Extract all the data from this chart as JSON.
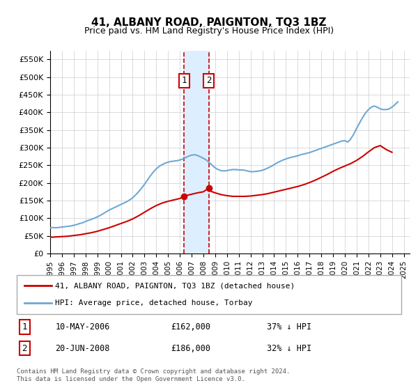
{
  "title": "41, ALBANY ROAD, PAIGNTON, TQ3 1BZ",
  "subtitle": "Price paid vs. HM Land Registry's House Price Index (HPI)",
  "ylabel": "",
  "ylim": [
    0,
    575000
  ],
  "yticks": [
    0,
    50000,
    100000,
    150000,
    200000,
    250000,
    300000,
    350000,
    400000,
    450000,
    500000,
    550000
  ],
  "ytick_labels": [
    "£0",
    "£50K",
    "£100K",
    "£150K",
    "£200K",
    "£250K",
    "£300K",
    "£350K",
    "£400K",
    "£450K",
    "£500K",
    "£550K"
  ],
  "xlim_start": 1995.0,
  "xlim_end": 2025.5,
  "xtick_years": [
    1995,
    1996,
    1997,
    1998,
    1999,
    2000,
    2001,
    2002,
    2003,
    2004,
    2005,
    2006,
    2007,
    2008,
    2009,
    2010,
    2011,
    2012,
    2013,
    2014,
    2015,
    2016,
    2017,
    2018,
    2019,
    2020,
    2021,
    2022,
    2023,
    2024,
    2025
  ],
  "hpi_color": "#6fa8d4",
  "price_color": "#cc0000",
  "marker_color": "#cc0000",
  "shade_color": "#ddeeff",
  "vline_color": "#cc0000",
  "legend_label_red": "41, ALBANY ROAD, PAIGNTON, TQ3 1BZ (detached house)",
  "legend_label_blue": "HPI: Average price, detached house, Torbay",
  "transaction1_label": "1",
  "transaction1_date": "10-MAY-2006",
  "transaction1_price": "£162,000",
  "transaction1_hpi": "37% ↓ HPI",
  "transaction1_year": 2006.37,
  "transaction1_value": 162000,
  "transaction2_label": "2",
  "transaction2_date": "20-JUN-2008",
  "transaction2_price": "£186,000",
  "transaction2_hpi": "32% ↓ HPI",
  "transaction2_year": 2008.47,
  "transaction2_value": 186000,
  "footer": "Contains HM Land Registry data © Crown copyright and database right 2024.\nThis data is licensed under the Open Government Licence v3.0.",
  "hpi_data_x": [
    1995.0,
    1995.25,
    1995.5,
    1995.75,
    1996.0,
    1996.25,
    1996.5,
    1996.75,
    1997.0,
    1997.25,
    1997.5,
    1997.75,
    1998.0,
    1998.25,
    1998.5,
    1998.75,
    1999.0,
    1999.25,
    1999.5,
    1999.75,
    2000.0,
    2000.25,
    2000.5,
    2000.75,
    2001.0,
    2001.25,
    2001.5,
    2001.75,
    2002.0,
    2002.25,
    2002.5,
    2002.75,
    2003.0,
    2003.25,
    2003.5,
    2003.75,
    2004.0,
    2004.25,
    2004.5,
    2004.75,
    2005.0,
    2005.25,
    2005.5,
    2005.75,
    2006.0,
    2006.25,
    2006.5,
    2006.75,
    2007.0,
    2007.25,
    2007.5,
    2007.75,
    2008.0,
    2008.25,
    2008.5,
    2008.75,
    2009.0,
    2009.25,
    2009.5,
    2009.75,
    2010.0,
    2010.25,
    2010.5,
    2010.75,
    2011.0,
    2011.25,
    2011.5,
    2011.75,
    2012.0,
    2012.25,
    2012.5,
    2012.75,
    2013.0,
    2013.25,
    2013.5,
    2013.75,
    2014.0,
    2014.25,
    2014.5,
    2014.75,
    2015.0,
    2015.25,
    2015.5,
    2015.75,
    2016.0,
    2016.25,
    2016.5,
    2016.75,
    2017.0,
    2017.25,
    2017.5,
    2017.75,
    2018.0,
    2018.25,
    2018.5,
    2018.75,
    2019.0,
    2019.25,
    2019.5,
    2019.75,
    2020.0,
    2020.25,
    2020.5,
    2020.75,
    2021.0,
    2021.25,
    2021.5,
    2021.75,
    2022.0,
    2022.25,
    2022.5,
    2022.75,
    2023.0,
    2023.25,
    2023.5,
    2023.75,
    2024.0,
    2024.25,
    2024.5
  ],
  "hpi_data_y": [
    73000,
    73500,
    73000,
    74000,
    75000,
    76000,
    77000,
    78000,
    80000,
    82000,
    85000,
    87000,
    91000,
    94000,
    97000,
    100000,
    104000,
    108000,
    113000,
    118000,
    123000,
    127000,
    131000,
    135000,
    139000,
    143000,
    147000,
    152000,
    158000,
    166000,
    175000,
    185000,
    196000,
    208000,
    220000,
    231000,
    240000,
    247000,
    252000,
    256000,
    259000,
    261000,
    262000,
    263000,
    265000,
    268000,
    272000,
    276000,
    279000,
    280000,
    278000,
    274000,
    270000,
    265000,
    258000,
    250000,
    243000,
    238000,
    235000,
    234000,
    235000,
    237000,
    238000,
    238000,
    237000,
    237000,
    236000,
    234000,
    232000,
    232000,
    233000,
    234000,
    236000,
    239000,
    243000,
    247000,
    252000,
    257000,
    261000,
    265000,
    268000,
    271000,
    273000,
    275000,
    277000,
    280000,
    282000,
    284000,
    286000,
    289000,
    292000,
    295000,
    298000,
    301000,
    304000,
    307000,
    310000,
    313000,
    316000,
    319000,
    320000,
    316000,
    325000,
    338000,
    355000,
    370000,
    385000,
    398000,
    408000,
    415000,
    418000,
    415000,
    410000,
    408000,
    408000,
    410000,
    415000,
    422000,
    430000
  ],
  "price_data_x": [
    1995.0,
    1995.5,
    1996.0,
    1996.5,
    1997.0,
    1997.5,
    1998.0,
    1998.5,
    1999.0,
    1999.5,
    2000.0,
    2000.5,
    2001.0,
    2001.5,
    2002.0,
    2002.5,
    2003.0,
    2003.5,
    2004.0,
    2004.5,
    2005.0,
    2005.5,
    2006.0,
    2006.37,
    2006.5,
    2007.0,
    2007.5,
    2008.0,
    2008.47,
    2008.5,
    2009.0,
    2009.5,
    2010.0,
    2010.5,
    2011.0,
    2011.5,
    2012.0,
    2012.5,
    2013.0,
    2013.5,
    2014.0,
    2014.5,
    2015.0,
    2015.5,
    2016.0,
    2016.5,
    2017.0,
    2017.5,
    2018.0,
    2018.5,
    2019.0,
    2019.5,
    2020.0,
    2020.5,
    2021.0,
    2021.5,
    2022.0,
    2022.5,
    2023.0,
    2023.5,
    2024.0
  ],
  "price_data_y": [
    46000,
    47000,
    48000,
    49000,
    51000,
    53000,
    56000,
    59000,
    63000,
    68000,
    73000,
    79000,
    85000,
    91000,
    98000,
    107000,
    117000,
    127000,
    136000,
    143000,
    148000,
    152000,
    156000,
    162000,
    164000,
    168000,
    172000,
    175000,
    186000,
    178000,
    172000,
    167000,
    164000,
    162000,
    162000,
    162000,
    163000,
    165000,
    167000,
    170000,
    174000,
    178000,
    182000,
    186000,
    190000,
    195000,
    201000,
    208000,
    216000,
    224000,
    233000,
    241000,
    248000,
    255000,
    264000,
    275000,
    288000,
    300000,
    306000,
    295000,
    287000
  ]
}
